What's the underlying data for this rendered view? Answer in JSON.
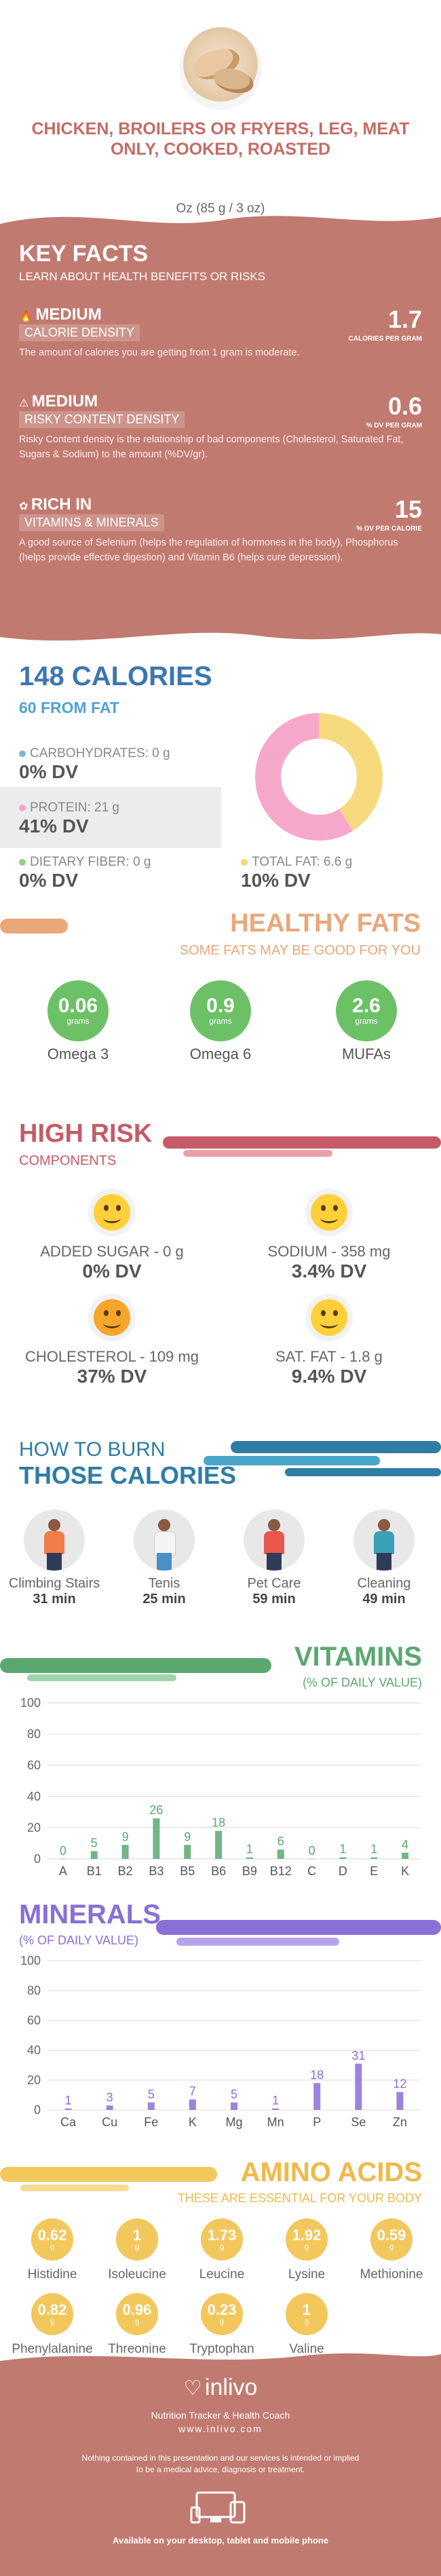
{
  "header": {
    "title": "CHICKEN, BROILERS OR FRYERS, LEG, MEAT ONLY, COOKED, ROASTED",
    "serving": "Oz (85 g / 3 oz)"
  },
  "key_facts": {
    "title": "KEY FACTS",
    "subtitle": "LEARN ABOUT HEALTH BENEFITS OR RISKS",
    "items": [
      {
        "level": "MEDIUM",
        "category": "CALORIE DENSITY",
        "value": "1.7",
        "unit": "CALORIES PER GRAM",
        "desc": "The amount of calories you are getting from 1 gram is moderate."
      },
      {
        "level": "MEDIUM",
        "category": "RISKY CONTENT DENSITY",
        "value": "0.6",
        "unit": "% DV PER GRAM",
        "desc": "Risky Content density is the relationship of bad components (Cholesterol, Saturated Fat, Sugars & Sodium) to the amount (%DV/gr)."
      },
      {
        "level": "RICH  IN",
        "category": "VITAMINS & MINERALS",
        "value": "15",
        "unit": "% DV PER CALORIE",
        "desc": "A good source of Selenium (helps the regulation of hormones in the body), Phosphorus (helps provide effective digestion) and Vitamin B6 (helps cure depression)."
      }
    ]
  },
  "calories": {
    "title": "148 CALORIES",
    "subtitle": "60 FROM FAT",
    "nutrients": [
      {
        "label": "CARBOHYDRATES: 0 g",
        "dv": "0% DV",
        "color": "#7ab7e0"
      },
      {
        "label": "PROTEIN: 21 g",
        "dv": "41% DV",
        "color": "#f3a6c8"
      },
      {
        "label": "DIETARY FIBER: 0 g",
        "dv": "0% DV",
        "color": "#8fd18b"
      },
      {
        "label": "TOTAL FAT: 6.6 g",
        "dv": "10% DV",
        "color": "#f7d774"
      }
    ],
    "donut": {
      "protein_pct": 59,
      "fat_pct": 41,
      "protein_color": "#f6a8cb",
      "fat_color": "#f8da7e"
    }
  },
  "healthy_fats": {
    "title": "HEALTHY FATS",
    "subtitle": "SOME FATS MAY BE GOOD FOR YOU",
    "items": [
      {
        "value": "0.06",
        "unit": "grams",
        "name": "Omega 3"
      },
      {
        "value": "0.9",
        "unit": "grams",
        "name": "Omega 6"
      },
      {
        "value": "2.6",
        "unit": "grams",
        "name": "MUFAs"
      }
    ]
  },
  "high_risk": {
    "title": "HIGH RISK",
    "subtitle": "COMPONENTS",
    "items": [
      {
        "label": "ADDED SUGAR - 0 g",
        "dv": "0% DV"
      },
      {
        "label": "SODIUM - 358 mg",
        "dv": "3.4% DV"
      },
      {
        "label": "CHOLESTEROL - 109 mg",
        "dv": "37% DV"
      },
      {
        "label": "SAT. FAT - 1.8 g",
        "dv": "9.4% DV"
      }
    ]
  },
  "burn": {
    "title_1": "HOW TO BURN",
    "title_2": "THOSE CALORIES",
    "activities": [
      {
        "name": "Climbing Stairs",
        "time": "31 min"
      },
      {
        "name": "Tenis",
        "time": "25 min"
      },
      {
        "name": "Pet Care",
        "time": "59 min"
      },
      {
        "name": "Cleaning",
        "time": "49 min"
      }
    ]
  },
  "vitamins": {
    "title": "VITAMINS",
    "subtitle": "(% OF DAILY VALUE)",
    "color": "#5aa870"
  },
  "minerals": {
    "title": "MINERALS",
    "subtitle": "(% OF DAILY VALUE)",
    "color": "#8a6fd6"
  },
  "amino": {
    "title": "AMINO ACIDS",
    "subtitle": "THESE ARE ESSENTIAL FOR YOUR BODY",
    "items": [
      {
        "value": "0.62",
        "unit": "g",
        "name": "Histidine"
      },
      {
        "value": "1",
        "unit": "g",
        "name": "Isoleucine"
      },
      {
        "value": "1.73",
        "unit": "g",
        "name": "Leucine"
      },
      {
        "value": "1.92",
        "unit": "g",
        "name": "Lysine"
      },
      {
        "value": "0.59",
        "unit": "g",
        "name": "Methionine"
      },
      {
        "value": "0.82",
        "unit": "g",
        "name": "Phenylalanine"
      },
      {
        "value": "0.96",
        "unit": "g",
        "name": "Threonine"
      },
      {
        "value": "0.23",
        "unit": "g",
        "name": "Tryptophan"
      },
      {
        "value": "1",
        "unit": "g",
        "name": "Valine"
      }
    ]
  },
  "footer": {
    "brand": "inlivo",
    "tagline": "Nutrition Tracker & Health Coach",
    "url": "www.inlivo.com",
    "disclaimer": "Nothing contained in this presentation and our services is intended or implied to be a medical advice, diagnosis or treatment.",
    "devices": "Available on your desktop, tablet and mobile phone"
  },
  "chart_data": [
    {
      "type": "bar",
      "title": "VITAMINS",
      "subtitle": "(% OF DAILY VALUE)",
      "categories": [
        "A",
        "B1",
        "B2",
        "B3",
        "B5",
        "B6",
        "B9",
        "B12",
        "C",
        "D",
        "E",
        "K"
      ],
      "values": [
        0,
        5,
        9,
        26,
        9,
        18,
        1,
        6,
        0,
        1,
        1,
        4
      ],
      "ylim": [
        0,
        100
      ],
      "yticks": [
        0,
        20,
        40,
        60,
        80,
        100
      ]
    },
    {
      "type": "bar",
      "title": "MINERALS",
      "subtitle": "(% OF DAILY VALUE)",
      "categories": [
        "Ca",
        "Cu",
        "Fe",
        "K",
        "Mg",
        "Mn",
        "P",
        "Se",
        "Zn"
      ],
      "values": [
        1,
        3,
        5,
        7,
        5,
        1,
        18,
        31,
        12
      ],
      "ylim": [
        0,
        100
      ],
      "yticks": [
        0,
        20,
        40,
        60,
        80,
        100
      ]
    }
  ]
}
